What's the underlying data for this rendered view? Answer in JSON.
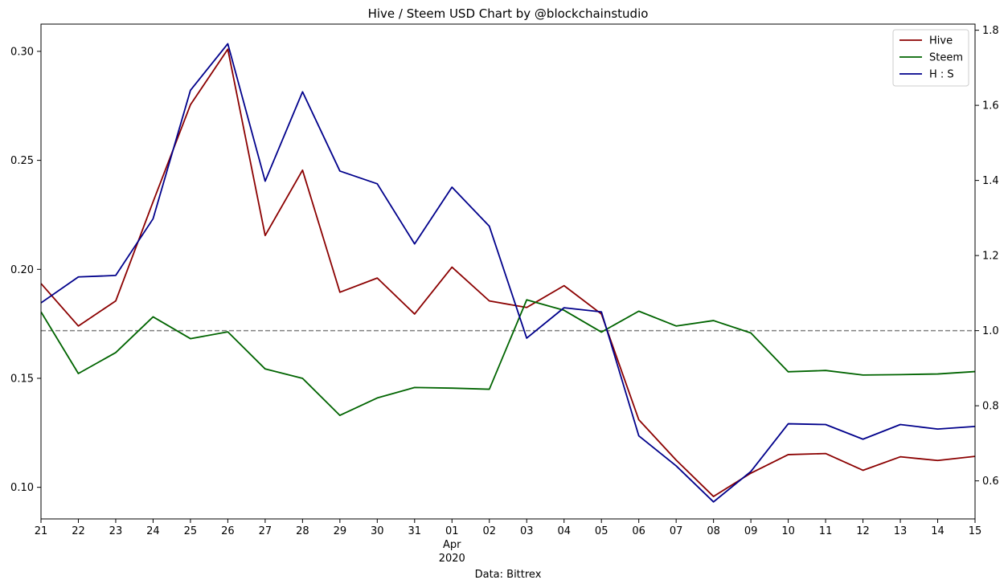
{
  "chart_data": {
    "type": "line",
    "title": "Hive / Steem USD Chart by @blockchainstudio",
    "xlabel": "Data: Bittrex",
    "ylabel": "",
    "y2label": "",
    "x": [
      "2020-03-21",
      "2020-03-22",
      "2020-03-23",
      "2020-03-24",
      "2020-03-25",
      "2020-03-26",
      "2020-03-27",
      "2020-03-28",
      "2020-03-29",
      "2020-03-30",
      "2020-03-31",
      "2020-04-01",
      "2020-04-02",
      "2020-04-03",
      "2020-04-04",
      "2020-04-05",
      "2020-04-06",
      "2020-04-07",
      "2020-04-08",
      "2020-04-09",
      "2020-04-10",
      "2020-04-11",
      "2020-04-12",
      "2020-04-13",
      "2020-04-14",
      "2020-04-15"
    ],
    "x_tick_labels": [
      "21",
      "22",
      "23",
      "24",
      "25",
      "26",
      "27",
      "28",
      "29",
      "30",
      "31",
      "01",
      "02",
      "03",
      "04",
      "05",
      "06",
      "07",
      "08",
      "09",
      "10",
      "11",
      "12",
      "13",
      "14",
      "15"
    ],
    "x_sublabels": [
      {
        "index": 11,
        "month": "Apr",
        "year": "2020"
      }
    ],
    "series": [
      {
        "name": "Hive",
        "axis": "left",
        "color": "#8b0000",
        "values": [
          0.1935,
          0.174,
          0.1855,
          0.231,
          0.2755,
          0.301,
          0.2155,
          0.2455,
          0.1895,
          0.196,
          0.1795,
          0.201,
          0.1855,
          0.1825,
          0.1925,
          0.1795,
          0.131,
          0.1125,
          0.0958,
          0.1065,
          0.115,
          0.1155,
          0.1078,
          0.114,
          0.1123,
          0.1142
        ]
      },
      {
        "name": "Steem",
        "axis": "left",
        "color": "#006400",
        "values": [
          0.1805,
          0.1522,
          0.1618,
          0.1782,
          0.1682,
          0.1713,
          0.1543,
          0.15,
          0.133,
          0.141,
          0.1458,
          0.1455,
          0.145,
          0.186,
          0.1812,
          0.1712,
          0.1808,
          0.174,
          0.1765,
          0.1708,
          0.153,
          0.1536,
          0.1515,
          0.1517,
          0.152,
          0.1531
        ]
      },
      {
        "name": "H : S",
        "axis": "right",
        "color": "#00008b",
        "values": [
          1.074,
          1.143,
          1.147,
          1.298,
          1.64,
          1.764,
          1.398,
          1.636,
          1.425,
          1.391,
          1.231,
          1.382,
          1.278,
          0.98,
          1.061,
          1.05,
          0.72,
          0.64,
          0.544,
          0.625,
          0.752,
          0.75,
          0.711,
          0.75,
          0.738,
          0.745
        ]
      }
    ],
    "reference_line": {
      "axis": "right",
      "value": 1.0,
      "style": "dashed",
      "color": "#808080"
    },
    "ylim": [
      0.0855,
      0.3125
    ],
    "y2lim": [
      0.4987,
      1.8163
    ],
    "y_ticks": [
      0.1,
      0.15,
      0.2,
      0.25,
      0.3
    ],
    "y_tick_labels": [
      "0.10",
      "0.15",
      "0.20",
      "0.25",
      "0.30"
    ],
    "y2_ticks": [
      0.6,
      0.8,
      1.0,
      1.2,
      1.4,
      1.6,
      1.8
    ],
    "y2_tick_labels": [
      "0.6",
      "0.8",
      "1.0",
      "1.2",
      "1.4",
      "1.6",
      "1.8"
    ],
    "grid": false,
    "legend_position": "top-right"
  }
}
